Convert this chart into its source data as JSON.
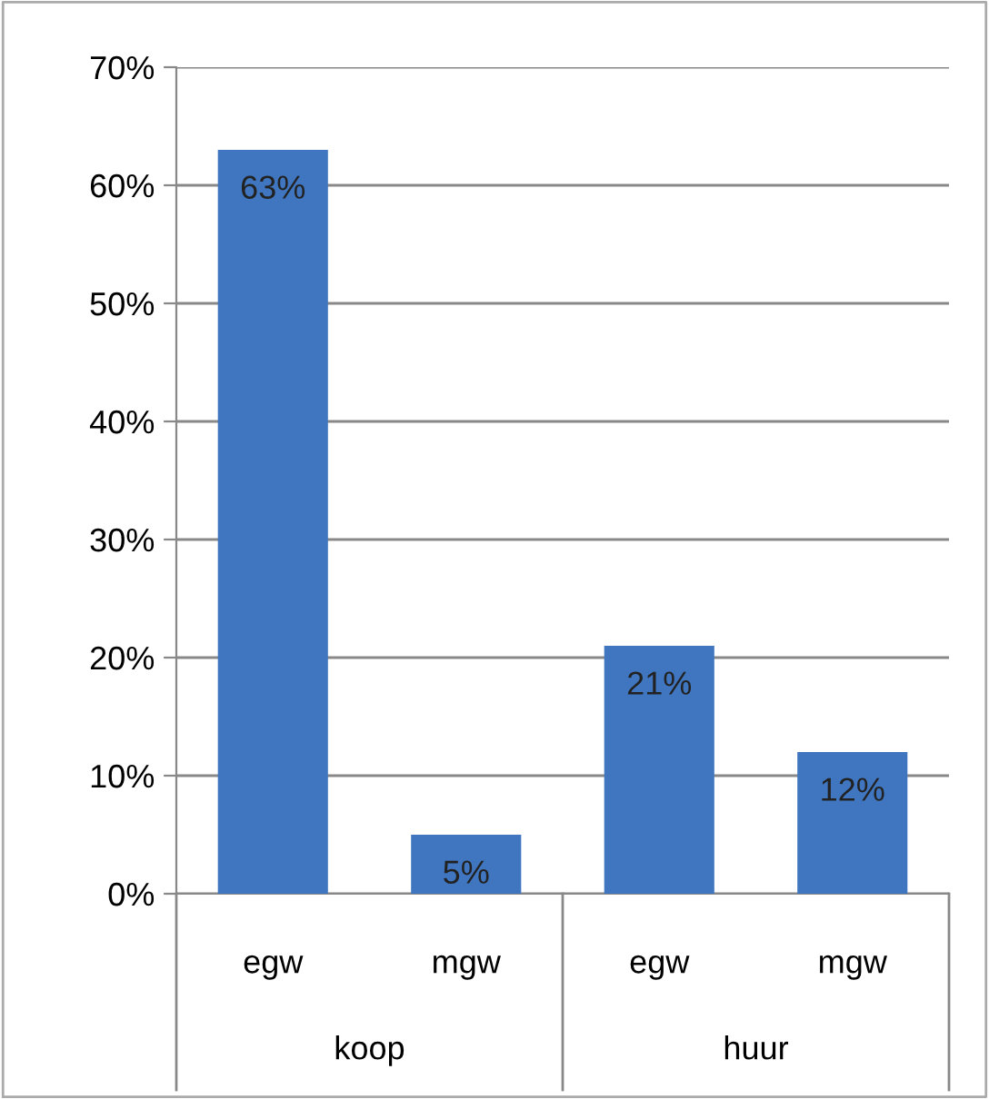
{
  "chart_data": {
    "type": "bar",
    "categories": [
      "egw",
      "mgw",
      "egw",
      "mgw"
    ],
    "values": [
      63,
      5,
      21,
      12
    ],
    "value_labels": [
      "63%",
      "5%",
      "21%",
      "12%"
    ],
    "color": "#3f76bf",
    "ylim": [
      0,
      70
    ],
    "yticks": [
      {
        "value": 0,
        "label": "0%"
      },
      {
        "value": 10,
        "label": "10%"
      },
      {
        "value": 20,
        "label": "20%"
      },
      {
        "value": 30,
        "label": "30%"
      },
      {
        "value": 40,
        "label": "40%"
      },
      {
        "value": 50,
        "label": "50%"
      },
      {
        "value": 60,
        "label": "60%"
      },
      {
        "value": 70,
        "label": "70%"
      }
    ],
    "grid": "y",
    "annotations": [
      "koop",
      "huur"
    ]
  }
}
